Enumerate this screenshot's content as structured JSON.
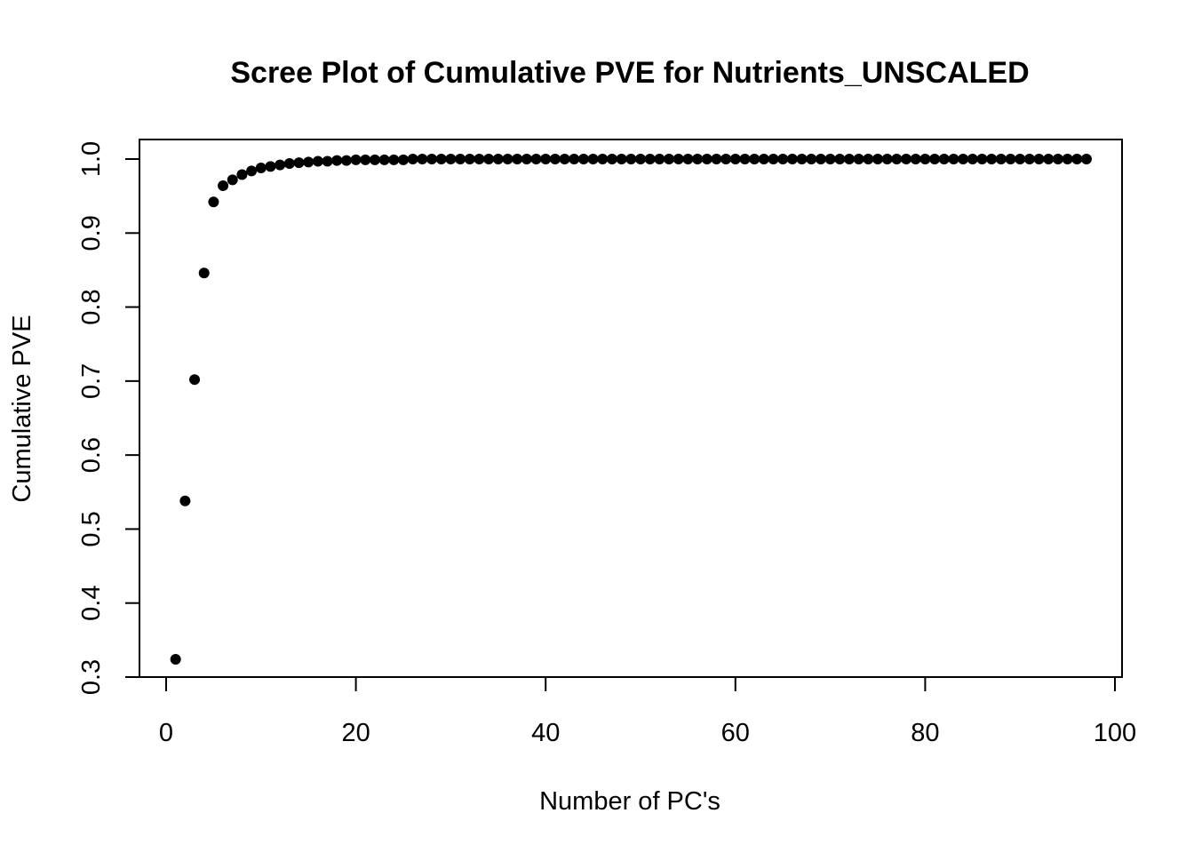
{
  "chart_data": {
    "type": "scatter",
    "title": "Scree Plot of Cumulative PVE for Nutrients_UNSCALED",
    "xlabel": "Number of PC's",
    "ylabel": "Cumulative PVE",
    "xlim": [
      0,
      100
    ],
    "ylim": [
      0.3,
      1.0
    ],
    "x_ticks": [
      "0",
      "20",
      "40",
      "60",
      "80",
      "100"
    ],
    "y_ticks": [
      "0.3",
      "0.4",
      "0.5",
      "0.6",
      "0.7",
      "0.8",
      "0.9",
      "1.0"
    ],
    "grid": false,
    "legend": "none",
    "point_color": "#000000",
    "series": [
      {
        "x": [
          1,
          2,
          3,
          4,
          5,
          6,
          7,
          8,
          9,
          10,
          11,
          12,
          13,
          14,
          15,
          16,
          17,
          18,
          19,
          20,
          21,
          22,
          23,
          24,
          25,
          26,
          27,
          28,
          29,
          30,
          31,
          32,
          33,
          34,
          35,
          36,
          37,
          38,
          39,
          40,
          41,
          42,
          43,
          44,
          45,
          46,
          47,
          48,
          49,
          50,
          51,
          52,
          53,
          54,
          55,
          56,
          57,
          58,
          59,
          60,
          61,
          62,
          63,
          64,
          65,
          66,
          67,
          68,
          69,
          70,
          71,
          72,
          73,
          74,
          75,
          76,
          77,
          78,
          79,
          80,
          81,
          82,
          83,
          84,
          85,
          86,
          87,
          88,
          89,
          90,
          91,
          92,
          93,
          94,
          95,
          96,
          97
        ],
        "values": [
          0.324,
          0.538,
          0.702,
          0.846,
          0.942,
          0.964,
          0.972,
          0.979,
          0.984,
          0.988,
          0.99,
          0.992,
          0.994,
          0.995,
          0.996,
          0.997,
          0.997,
          0.998,
          0.998,
          0.999,
          0.999,
          0.999,
          0.999,
          0.999,
          0.999,
          1.0,
          1.0,
          1.0,
          1.0,
          1.0,
          1.0,
          1.0,
          1.0,
          1.0,
          1.0,
          1.0,
          1.0,
          1.0,
          1.0,
          1.0,
          1.0,
          1.0,
          1.0,
          1.0,
          1.0,
          1.0,
          1.0,
          1.0,
          1.0,
          1.0,
          1.0,
          1.0,
          1.0,
          1.0,
          1.0,
          1.0,
          1.0,
          1.0,
          1.0,
          1.0,
          1.0,
          1.0,
          1.0,
          1.0,
          1.0,
          1.0,
          1.0,
          1.0,
          1.0,
          1.0,
          1.0,
          1.0,
          1.0,
          1.0,
          1.0,
          1.0,
          1.0,
          1.0,
          1.0,
          1.0,
          1.0,
          1.0,
          1.0,
          1.0,
          1.0,
          1.0,
          1.0,
          1.0,
          1.0,
          1.0,
          1.0,
          1.0,
          1.0,
          1.0,
          1.0,
          1.0,
          1.0
        ]
      }
    ]
  }
}
